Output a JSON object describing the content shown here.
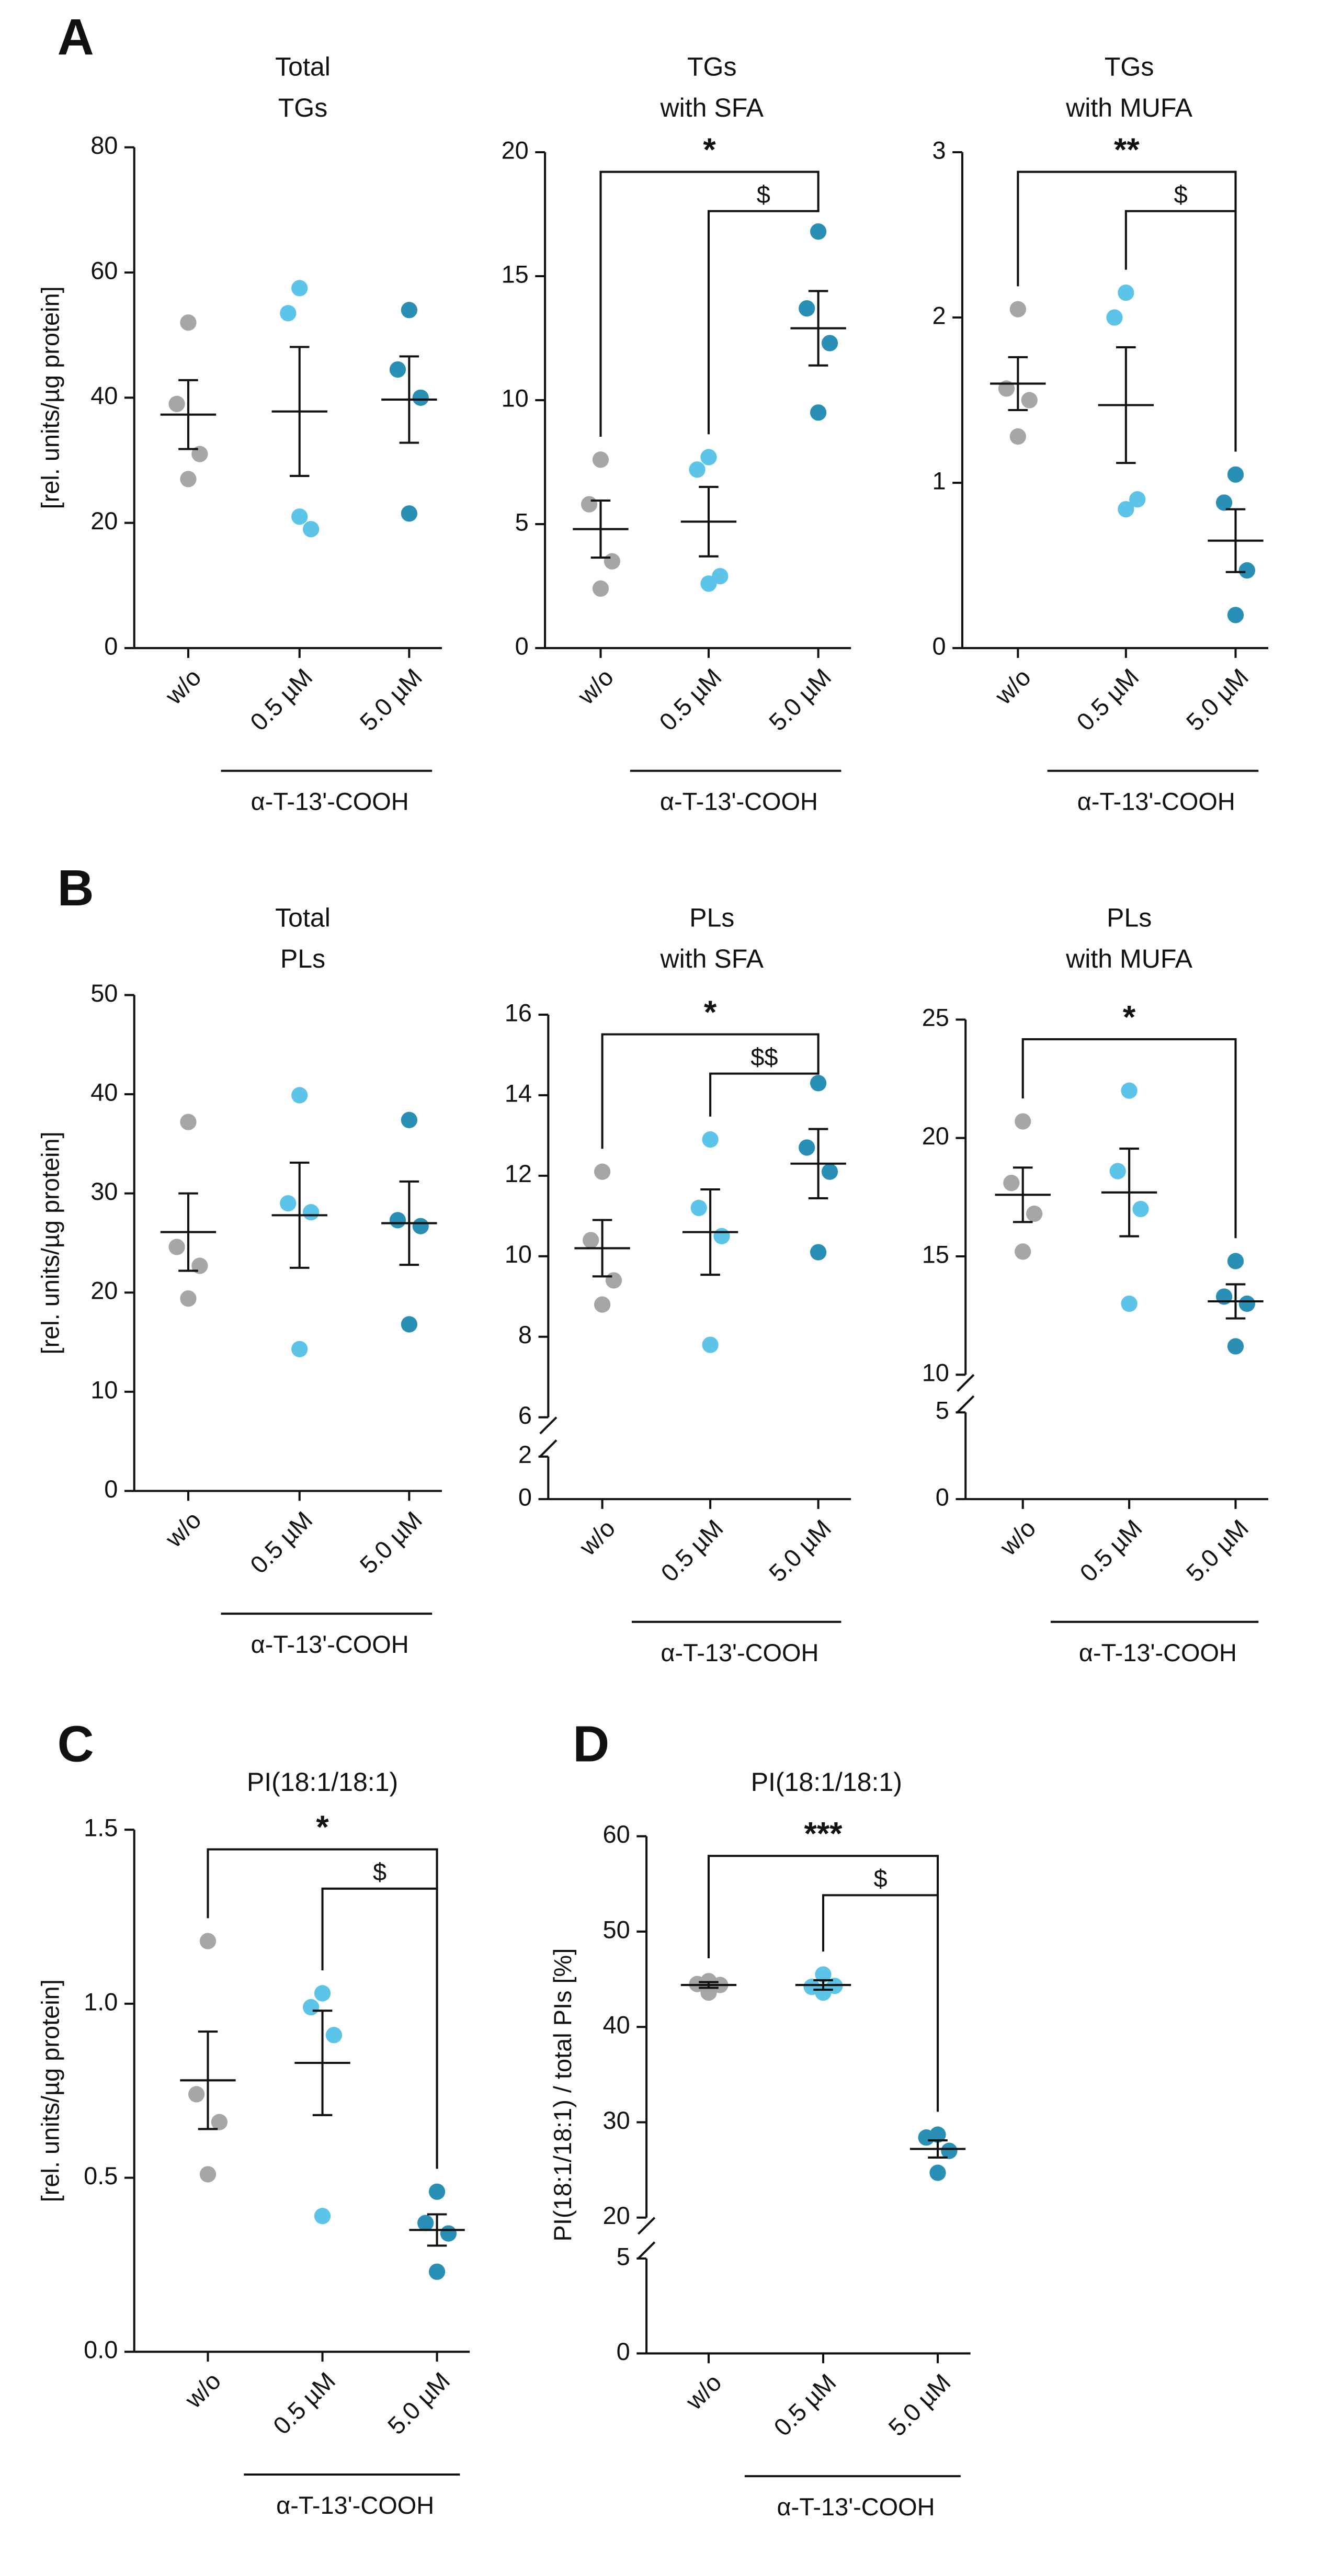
{
  "chart_data": [
    {
      "type": "dot",
      "panel": "A",
      "title": [
        "Total",
        "TGs"
      ],
      "ylabel": "[rel. units/µg protein]",
      "ylim": [
        0,
        80
      ],
      "yticks": [
        0,
        20,
        40,
        60,
        80
      ],
      "group_label": "α-T-13'-COOH",
      "groups": [
        {
          "name": "w/o",
          "color": "#a6a6a6",
          "values": [
            52,
            39,
            31,
            27
          ],
          "mean": 37.3,
          "sem": 5.5
        },
        {
          "name": "0.5 µM",
          "color": "#5bc4e8",
          "values": [
            57.5,
            53.5,
            19,
            21
          ],
          "mean": 37.8,
          "sem": 10.3
        },
        {
          "name": "5.0 µM",
          "color": "#2a8fb5",
          "values": [
            54,
            44.5,
            40,
            21.5
          ],
          "mean": 39.7,
          "sem": 6.9
        }
      ],
      "brackets": []
    },
    {
      "type": "dot",
      "title": [
        "TGs",
        "with SFA"
      ],
      "ylim": [
        0,
        20
      ],
      "yticks": [
        0,
        5,
        10,
        15,
        20
      ],
      "group_label": "α-T-13'-COOH",
      "groups": [
        {
          "name": "w/o",
          "color": "#a6a6a6",
          "values": [
            7.6,
            5.8,
            3.5,
            2.4
          ],
          "mean": 4.8,
          "sem": 1.15
        },
        {
          "name": "0.5 µM",
          "color": "#5bc4e8",
          "values": [
            7.7,
            7.2,
            2.9,
            2.6
          ],
          "mean": 5.1,
          "sem": 1.4
        },
        {
          "name": "5.0 µM",
          "color": "#2a8fb5",
          "values": [
            16.8,
            13.7,
            12.3,
            9.5
          ],
          "mean": 12.9,
          "sem": 1.5
        }
      ],
      "brackets": [
        {
          "label": "*",
          "from": 0,
          "to": 2
        },
        {
          "label": "$",
          "from": 1,
          "to": 2
        }
      ]
    },
    {
      "type": "dot",
      "title": [
        "TGs",
        "with MUFA"
      ],
      "ylim": [
        0,
        3
      ],
      "yticks": [
        0,
        1,
        2,
        3
      ],
      "group_label": "α-T-13'-COOH",
      "groups": [
        {
          "name": "w/o",
          "color": "#a6a6a6",
          "values": [
            2.05,
            1.57,
            1.5,
            1.28
          ],
          "mean": 1.6,
          "sem": 0.16
        },
        {
          "name": "0.5 µM",
          "color": "#5bc4e8",
          "values": [
            2.15,
            2.0,
            0.9,
            0.84
          ],
          "mean": 1.47,
          "sem": 0.35
        },
        {
          "name": "5.0 µM",
          "color": "#2a8fb5",
          "values": [
            1.05,
            0.88,
            0.47,
            0.2
          ],
          "mean": 0.65,
          "sem": 0.19
        }
      ],
      "brackets": [
        {
          "label": "**",
          "from": 0,
          "to": 2
        },
        {
          "label": "$",
          "from": 1,
          "to": 2
        }
      ]
    },
    {
      "type": "dot",
      "panel": "B",
      "title": [
        "Total",
        "PLs"
      ],
      "ylabel": "[rel. units/µg protein]",
      "ylim": [
        0,
        50
      ],
      "yticks": [
        0,
        10,
        20,
        30,
        40,
        50
      ],
      "group_label": "α-T-13'-COOH",
      "groups": [
        {
          "name": "w/o",
          "color": "#a6a6a6",
          "values": [
            37.2,
            24.6,
            22.7,
            19.4
          ],
          "mean": 26.1,
          "sem": 3.9
        },
        {
          "name": "0.5 µM",
          "color": "#5bc4e8",
          "values": [
            39.9,
            29.0,
            28.1,
            14.3
          ],
          "mean": 27.8,
          "sem": 5.3
        },
        {
          "name": "5.0 µM",
          "color": "#2a8fb5",
          "values": [
            37.4,
            27.3,
            26.7,
            16.8
          ],
          "mean": 27,
          "sem": 4.2
        }
      ],
      "brackets": []
    },
    {
      "type": "dot",
      "title": [
        "PLs",
        "with SFA"
      ],
      "ylim": [
        6,
        16
      ],
      "yticks": [
        6,
        8,
        10,
        12,
        14,
        16
      ],
      "ylim_lower": [
        0,
        2
      ],
      "yticks_lower": [
        0,
        2
      ],
      "group_label": "α-T-13'-COOH",
      "groups": [
        {
          "name": "w/o",
          "color": "#a6a6a6",
          "values": [
            12.1,
            10.4,
            9.4,
            8.8
          ],
          "mean": 10.2,
          "sem": 0.7
        },
        {
          "name": "0.5 µM",
          "color": "#5bc4e8",
          "values": [
            12.9,
            11.2,
            10.5,
            7.8
          ],
          "mean": 10.6,
          "sem": 1.06
        },
        {
          "name": "5.0 µM",
          "color": "#2a8fb5",
          "values": [
            14.3,
            12.7,
            12.1,
            10.1
          ],
          "mean": 12.3,
          "sem": 0.86
        }
      ],
      "brackets": [
        {
          "label": "*",
          "from": 0,
          "to": 2
        },
        {
          "label": "$$",
          "from": 1,
          "to": 2
        }
      ]
    },
    {
      "type": "dot",
      "title": [
        "PLs",
        "with MUFA"
      ],
      "ylim": [
        10,
        25
      ],
      "yticks": [
        10,
        15,
        20,
        25
      ],
      "ylim_lower": [
        0,
        5
      ],
      "yticks_lower": [
        0,
        5
      ],
      "group_label": "α-T-13'-COOH",
      "groups": [
        {
          "name": "w/o",
          "color": "#a6a6a6",
          "values": [
            20.7,
            18.1,
            16.8,
            15.2
          ],
          "mean": 17.6,
          "sem": 1.15
        },
        {
          "name": "0.5 µM",
          "color": "#5bc4e8",
          "values": [
            22.0,
            18.6,
            17.0,
            13.0
          ],
          "mean": 17.7,
          "sem": 1.85
        },
        {
          "name": "5.0 µM",
          "color": "#2a8fb5",
          "values": [
            14.8,
            13.3,
            13.0,
            11.2
          ],
          "mean": 13.1,
          "sem": 0.72
        }
      ],
      "brackets": [
        {
          "label": "*",
          "from": 0,
          "to": 2
        }
      ]
    },
    {
      "type": "dot",
      "panel": "C",
      "title": [
        "PI(18:1/18:1)"
      ],
      "ylabel": "[rel. units/µg protein]",
      "ylim": [
        0,
        1.5
      ],
      "yticks": [
        {
          "value": 0,
          "label": "0.0"
        },
        0.5,
        {
          "value": 1,
          "label": "1.0"
        },
        1.5
      ],
      "group_label": "α-T-13'-COOH",
      "groups": [
        {
          "name": "w/o",
          "color": "#a6a6a6",
          "values": [
            1.18,
            0.74,
            0.66,
            0.51
          ],
          "mean": 0.78,
          "sem": 0.14
        },
        {
          "name": "0.5 µM",
          "color": "#5bc4e8",
          "values": [
            1.03,
            0.99,
            0.91,
            0.39
          ],
          "mean": 0.83,
          "sem": 0.15
        },
        {
          "name": "5.0 µM",
          "color": "#2a8fb5",
          "values": [
            0.46,
            0.37,
            0.34,
            0.23
          ],
          "mean": 0.35,
          "sem": 0.045
        }
      ],
      "brackets": [
        {
          "label": "*",
          "from": 0,
          "to": 2
        },
        {
          "label": "$",
          "from": 1,
          "to": 2
        }
      ]
    },
    {
      "type": "dot",
      "panel": "D",
      "title": [
        "PI(18:1/18:1)"
      ],
      "ylabel": "PI(18:1/18:1) / total PIs [%]",
      "ylim": [
        20,
        60
      ],
      "yticks": [
        20,
        30,
        40,
        50,
        60
      ],
      "ylim_lower": [
        0,
        5
      ],
      "yticks_lower": [
        0,
        5
      ],
      "group_label": "α-T-13'-COOH",
      "groups": [
        {
          "name": "w/o",
          "color": "#a6a6a6",
          "values": [
            44.8,
            44.5,
            44.4,
            43.6
          ],
          "mean": 44.4,
          "sem": 0.3
        },
        {
          "name": "0.5 µM",
          "color": "#5bc4e8",
          "values": [
            45.5,
            44.2,
            44.3,
            43.6
          ],
          "mean": 44.4,
          "sem": 0.5
        },
        {
          "name": "5.0 µM",
          "color": "#2a8fb5",
          "values": [
            28.7,
            28.4,
            27.0,
            24.7
          ],
          "mean": 27.2,
          "sem": 0.9
        }
      ],
      "brackets": [
        {
          "label": "***",
          "from": 0,
          "to": 2
        },
        {
          "label": "$",
          "from": 1,
          "to": 2
        }
      ]
    }
  ]
}
